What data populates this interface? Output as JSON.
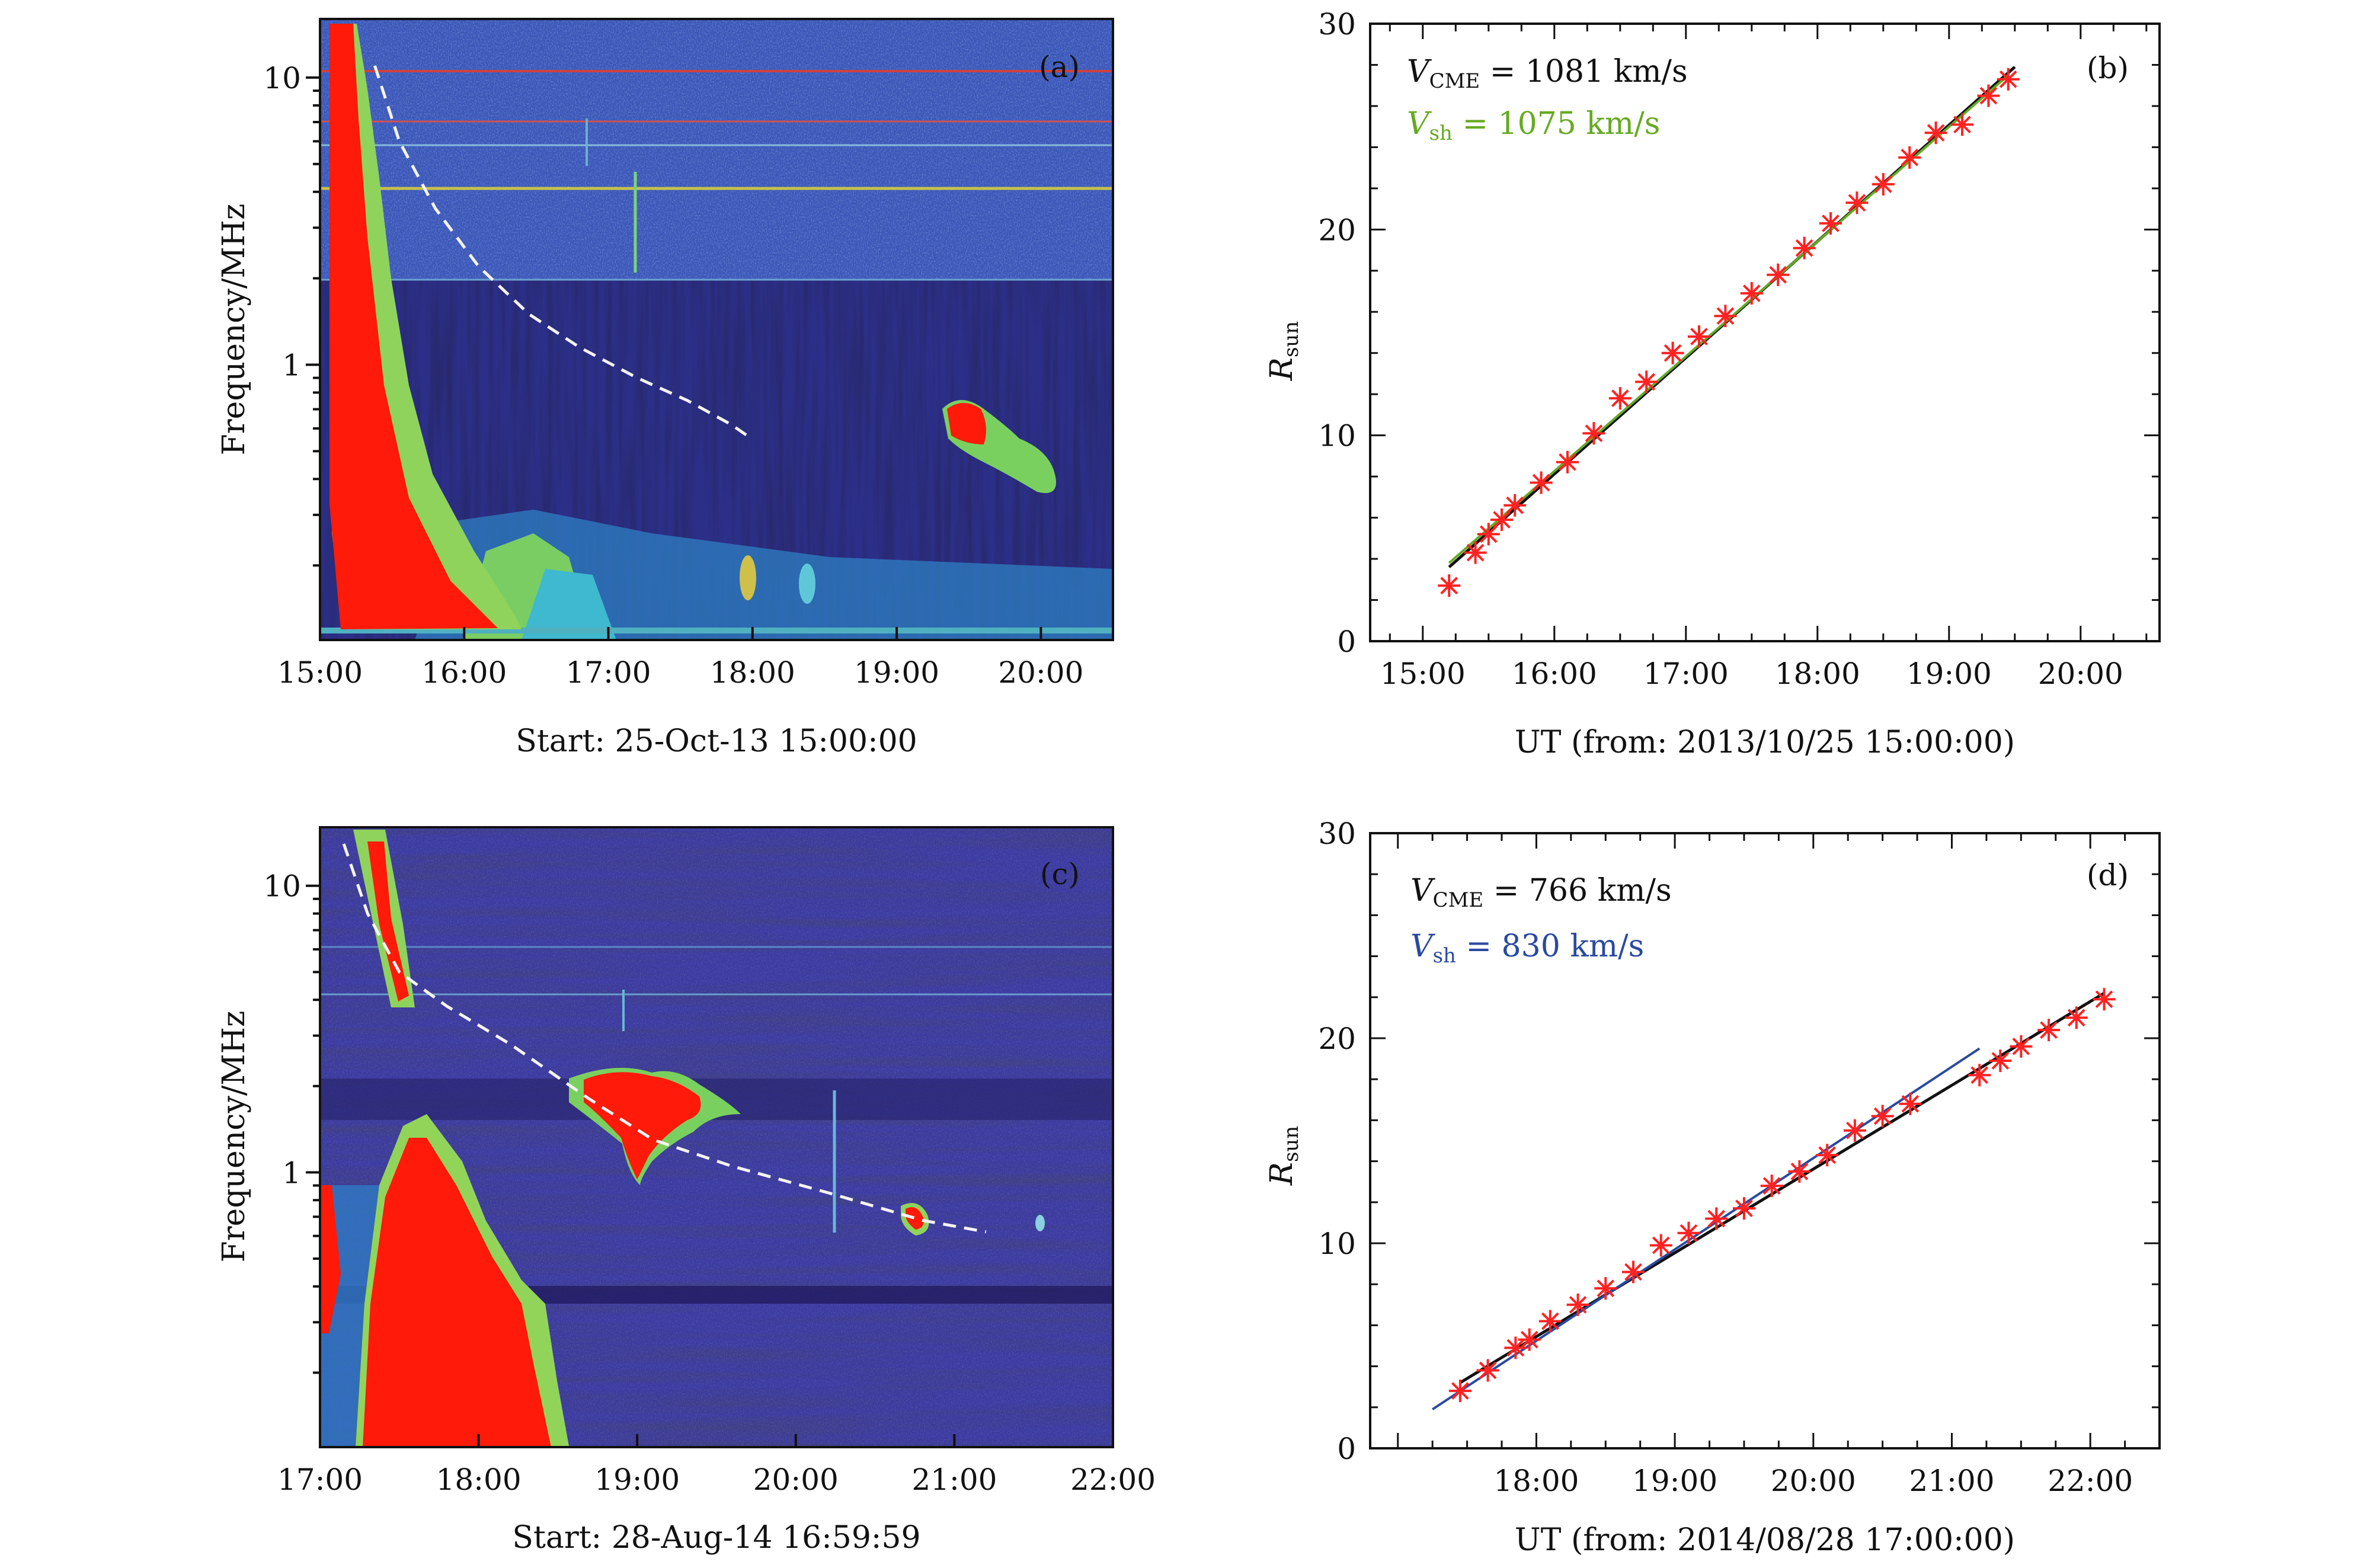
{
  "chart_data": [
    {
      "panel": "(a)",
      "type": "heatmap",
      "ylabel": "Frequency/MHz",
      "xlabel": "Start: 25-Oct-13 15:00:00",
      "x_ticks": [
        "15:00",
        "16:00",
        "17:00",
        "18:00",
        "19:00",
        "20:00"
      ],
      "x_range_hours": [
        15.0,
        20.5
      ],
      "y_scale": "log",
      "y_ticks": [
        "1",
        "10"
      ],
      "y_range_mhz": [
        0.11,
        16
      ],
      "dashed_track": {
        "t_hours": [
          15.38,
          15.55,
          15.8,
          16.1,
          16.45,
          16.8,
          17.2,
          17.55,
          17.85,
          18.0
        ],
        "f_mhz": [
          11.0,
          6.0,
          3.5,
          2.2,
          1.5,
          1.15,
          0.9,
          0.75,
          0.62,
          0.55
        ]
      },
      "colors": {
        "background": "#2e3a9a",
        "bright": "#ff2200",
        "mid": "#8cd65a",
        "cyan": "#39b9d6"
      }
    },
    {
      "panel": "(b)",
      "type": "scatter",
      "ylabel": "Rsun",
      "xlabel": "UT (from: 2013/10/25 15:00:00)",
      "x_ticks": [
        "15:00",
        "16:00",
        "17:00",
        "18:00",
        "19:00",
        "20:00"
      ],
      "x_range_hours": [
        14.6,
        20.6
      ],
      "ylim": [
        0,
        30
      ],
      "y_ticks": [
        0,
        10,
        20,
        30
      ],
      "legend": [
        {
          "main": "V",
          "sub": "CME",
          "rest": " = 1081 km/s",
          "color": "#111111"
        },
        {
          "main": "V",
          "sub": "sh",
          "rest": " = 1075 km/s",
          "color": "#66aa22"
        }
      ],
      "points": {
        "t_hours": [
          15.2,
          15.4,
          15.5,
          15.6,
          15.7,
          15.9,
          16.1,
          16.3,
          16.5,
          16.7,
          16.9,
          17.1,
          17.3,
          17.5,
          17.7,
          17.9,
          18.1,
          18.3,
          18.5,
          18.7,
          18.9,
          19.1,
          19.3,
          19.45
        ],
        "r_sun": [
          2.7,
          4.3,
          5.2,
          5.9,
          6.6,
          7.7,
          8.7,
          10.1,
          11.8,
          12.6,
          14.0,
          14.8,
          15.8,
          16.9,
          17.8,
          19.1,
          20.3,
          21.3,
          22.2,
          23.5,
          24.7,
          25.1,
          26.5,
          27.3
        ]
      },
      "fit_lines": [
        {
          "name": "CME",
          "t": [
            15.2,
            19.5
          ],
          "r": [
            3.6,
            27.9
          ],
          "color": "#111111"
        },
        {
          "name": "shock",
          "t": [
            15.2,
            19.45
          ],
          "r": [
            3.8,
            27.5
          ],
          "color": "#66aa22"
        }
      ],
      "marker_color": "#ff2222"
    },
    {
      "panel": "(c)",
      "type": "heatmap",
      "ylabel": "Frequency/MHz",
      "xlabel": "Start: 28-Aug-14 16:59:59",
      "x_ticks": [
        "17:00",
        "18:00",
        "19:00",
        "20:00",
        "21:00",
        "22:00"
      ],
      "x_range_hours": [
        17.0,
        22.0
      ],
      "y_scale": "log",
      "y_ticks": [
        "1",
        "10"
      ],
      "y_range_mhz": [
        0.11,
        16
      ],
      "dashed_track": {
        "t_hours": [
          17.15,
          17.3,
          17.5,
          17.8,
          18.2,
          18.7,
          19.1,
          19.6,
          20.2,
          20.8,
          21.2
        ],
        "f_mhz": [
          14.0,
          8.0,
          5.0,
          3.8,
          2.8,
          1.8,
          1.3,
          1.05,
          0.85,
          0.68,
          0.62
        ]
      },
      "colors": {
        "background": "#2e3a9a",
        "bright": "#ff2200",
        "mid": "#8cd65a",
        "cyan": "#39b9d6"
      }
    },
    {
      "panel": "(d)",
      "type": "scatter",
      "ylabel": "Rsun",
      "xlabel": "UT (from: 2014/08/28 17:00:00)",
      "x_ticks": [
        "18:00",
        "19:00",
        "20:00",
        "21:00",
        "22:00"
      ],
      "x_range_hours": [
        16.8,
        22.5
      ],
      "ylim": [
        0,
        30
      ],
      "y_ticks": [
        0,
        10,
        20,
        30
      ],
      "legend": [
        {
          "main": "V",
          "sub": "CME",
          "rest": " = 766 km/s",
          "color": "#111111"
        },
        {
          "main": "V",
          "sub": "sh",
          "rest": " = 830 km/s",
          "color": "#2a4aa0"
        }
      ],
      "points": {
        "t_hours": [
          17.45,
          17.65,
          17.85,
          17.95,
          18.1,
          18.3,
          18.5,
          18.7,
          18.9,
          19.1,
          19.3,
          19.5,
          19.7,
          19.9,
          20.1,
          20.3,
          20.5,
          20.7,
          21.2,
          21.35,
          21.5,
          21.7,
          21.9,
          22.1
        ],
        "r_sun": [
          2.8,
          3.8,
          4.9,
          5.3,
          6.2,
          7.0,
          7.8,
          8.6,
          9.9,
          10.5,
          11.2,
          11.7,
          12.8,
          13.5,
          14.3,
          15.5,
          16.2,
          16.8,
          18.2,
          18.9,
          19.6,
          20.4,
          21.0,
          21.9
        ]
      },
      "fit_lines": [
        {
          "name": "CME",
          "t": [
            17.45,
            22.1
          ],
          "r": [
            3.2,
            22.2
          ],
          "color": "#111111"
        },
        {
          "name": "shock",
          "t": [
            17.25,
            21.2
          ],
          "r": [
            1.9,
            19.5
          ],
          "color": "#2a4aa0"
        }
      ],
      "marker_color": "#ff2222"
    }
  ]
}
